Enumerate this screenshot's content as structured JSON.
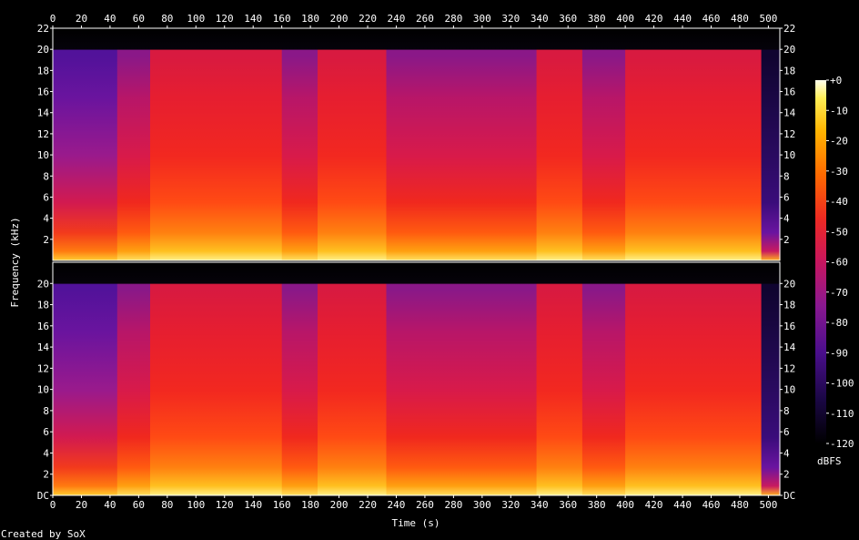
{
  "chart_data": {
    "type": "heatmap",
    "title": "",
    "xlabel": "Time (s)",
    "ylabel": "Frequency (kHz)",
    "xlim": [
      0,
      508
    ],
    "x_ticks": [
      0,
      20,
      40,
      60,
      80,
      100,
      120,
      140,
      160,
      180,
      200,
      220,
      240,
      260,
      280,
      300,
      320,
      340,
      360,
      380,
      400,
      420,
      440,
      460,
      480,
      500
    ],
    "channels": [
      {
        "ylim": [
          0,
          22
        ],
        "y_ticks": [
          "2",
          "4",
          "6",
          "8",
          "10",
          "12",
          "14",
          "16",
          "18",
          "20",
          "22"
        ]
      },
      {
        "ylim": [
          0,
          22
        ],
        "y_ticks": [
          "DC",
          "2",
          "4",
          "6",
          "8",
          "10",
          "12",
          "14",
          "16",
          "18",
          "20"
        ]
      }
    ],
    "colorbar": {
      "label": "dBFS",
      "range": [
        -120,
        0
      ],
      "ticks": [
        "+0",
        "-10",
        "-20",
        "-30",
        "-40",
        "-50",
        "-60",
        "-70",
        "-80",
        "-90",
        "-100",
        "-110",
        "-120"
      ],
      "colormap": [
        "#000000",
        "#2b0a6b",
        "#5a0f9a",
        "#9b1a8a",
        "#d4165a",
        "#f2281e",
        "#ff6a00",
        "#ffb200",
        "#ffe84a",
        "#ffffe8"
      ]
    },
    "segments_time_s": [
      {
        "t0": 0,
        "t1": 45,
        "level": "low"
      },
      {
        "t0": 45,
        "t1": 68,
        "level": "mid"
      },
      {
        "t0": 68,
        "t1": 115,
        "level": "high"
      },
      {
        "t0": 115,
        "t1": 160,
        "level": "high"
      },
      {
        "t0": 160,
        "t1": 185,
        "level": "mid"
      },
      {
        "t0": 185,
        "t1": 233,
        "level": "high"
      },
      {
        "t0": 233,
        "t1": 290,
        "level": "mid"
      },
      {
        "t0": 290,
        "t1": 338,
        "level": "mid"
      },
      {
        "t0": 338,
        "t1": 370,
        "level": "high"
      },
      {
        "t0": 370,
        "t1": 400,
        "level": "mid"
      },
      {
        "t0": 400,
        "t1": 495,
        "level": "high"
      },
      {
        "t0": 495,
        "t1": 508,
        "level": "fade"
      }
    ],
    "footer": "Created by SoX"
  }
}
